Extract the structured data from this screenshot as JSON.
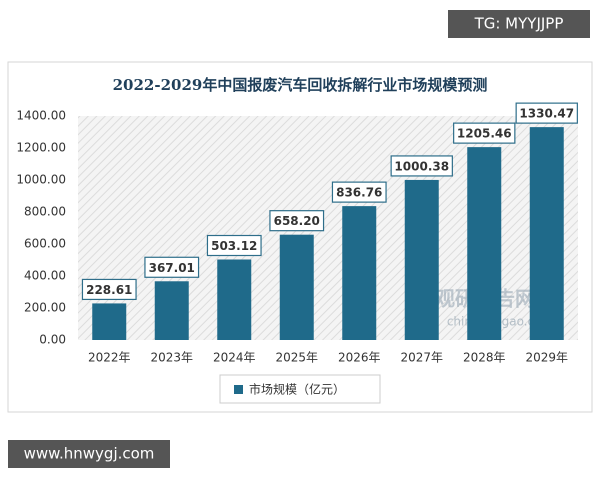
{
  "chart_data": {
    "type": "bar",
    "title": "2022-2029年中国报废汽车回收拆解行业市场规模预测",
    "categories": [
      "2022年",
      "2023年",
      "2024年",
      "2025年",
      "2026年",
      "2027年",
      "2028年",
      "2029年"
    ],
    "series": [
      {
        "name": "市场规模（亿元）",
        "color": "#1f6a8a",
        "values": [
          228.61,
          367.01,
          503.12,
          658.2,
          836.76,
          1000.38,
          1205.46,
          1330.47
        ],
        "value_labels": [
          "228.61",
          "367.01",
          "503.12",
          "658.20",
          "836.76",
          "1000.38",
          "1205.46",
          "1330.47"
        ]
      }
    ],
    "ylim": [
      0,
      1400
    ],
    "yticks": [
      {
        "value": 0,
        "label": "0.00"
      },
      {
        "value": 200,
        "label": "200.00"
      },
      {
        "value": 400,
        "label": "400.00"
      },
      {
        "value": 600,
        "label": "600.00"
      },
      {
        "value": 800,
        "label": "800.00"
      },
      {
        "value": 1000,
        "label": "1000.00"
      },
      {
        "value": 1200,
        "label": "1200.00"
      },
      {
        "value": 1400,
        "label": "1400.00"
      }
    ],
    "legend": "bottom"
  },
  "watermarks": {
    "top": "TG: MYYJJPP",
    "bottom": "www.hnwygj.com",
    "logo": "观研报告网",
    "logo_url": "chinabaogao.com"
  }
}
